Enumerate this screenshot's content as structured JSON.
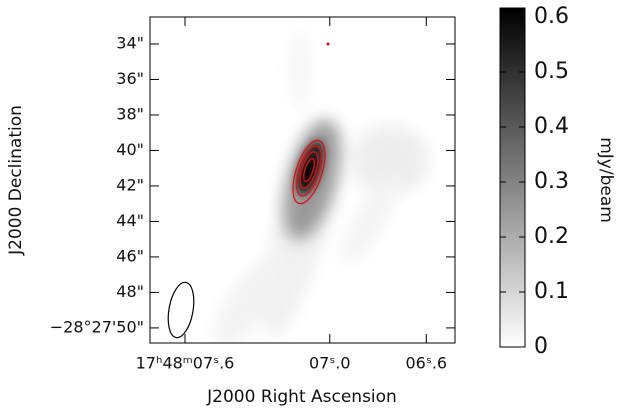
{
  "chart_data": {
    "type": "image",
    "xlabel": "J2000 Right Ascension",
    "ylabel": "J2000 Declination",
    "xlim": [
      7.745,
      6.481
    ],
    "xticks": [
      {
        "value": 7.6,
        "label": "17ʰ48ᵐ07ˢ.6"
      },
      {
        "value": 7.0,
        "label": "07ˢ.0"
      },
      {
        "value": 6.6,
        "label": "06ˢ.6"
      }
    ],
    "ylim": [
      50.85,
      32.48
    ],
    "yticks": [
      {
        "value": 34,
        "label": "34\""
      },
      {
        "value": 36,
        "label": "36\""
      },
      {
        "value": 38,
        "label": "38\""
      },
      {
        "value": 40,
        "label": "40\""
      },
      {
        "value": 42,
        "label": "42\""
      },
      {
        "value": 44,
        "label": "44\""
      },
      {
        "value": 46,
        "label": "46\""
      },
      {
        "value": 48,
        "label": "48\""
      },
      {
        "value": 50,
        "label": "−28°27'50\""
      }
    ],
    "contour_color": "#e01010",
    "colorbar": {
      "label": "mJy/beam",
      "lim": [
        0,
        0.6
      ],
      "ticks": [
        0,
        0.1,
        0.2,
        0.3,
        0.4,
        0.5,
        0.6
      ]
    }
  }
}
